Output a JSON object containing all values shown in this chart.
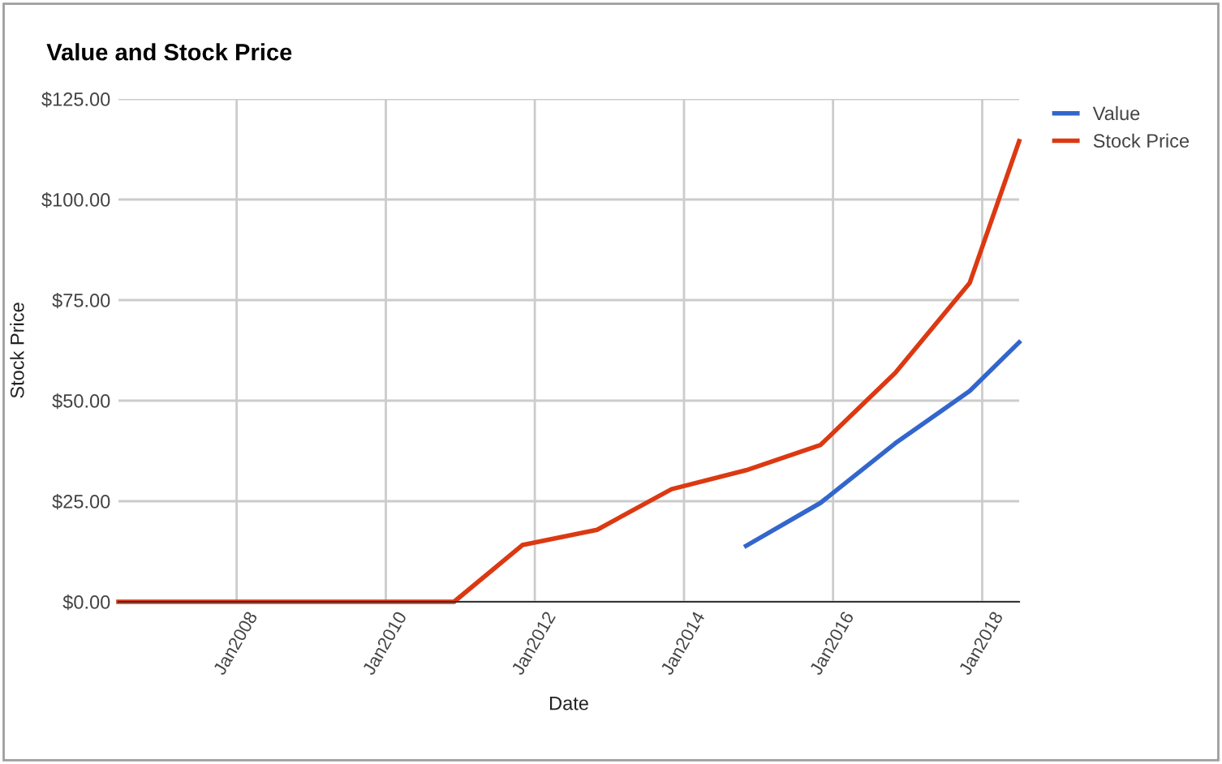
{
  "chart_data": {
    "type": "line",
    "title": "Value and Stock Price",
    "xlabel": "Date",
    "ylabel": "Stock Price",
    "xlim": [
      "2006-06",
      "2018-07"
    ],
    "xticks": [
      {
        "value": "2008-01",
        "label": "Jan2008"
      },
      {
        "value": "2010-01",
        "label": "Jan2010"
      },
      {
        "value": "2012-01",
        "label": "Jan2012"
      },
      {
        "value": "2014-01",
        "label": "Jan2014"
      },
      {
        "value": "2016-01",
        "label": "Jan2016"
      },
      {
        "value": "2018-01",
        "label": "Jan2018"
      }
    ],
    "ylim": [
      0,
      125
    ],
    "yticks": [
      {
        "value": 0,
        "label": "$0.00"
      },
      {
        "value": 25,
        "label": "$25.00"
      },
      {
        "value": 50,
        "label": "$50.00"
      },
      {
        "value": 75,
        "label": "$75.00"
      },
      {
        "value": 100,
        "label": "$100.00"
      },
      {
        "value": 125,
        "label": "$125.00"
      }
    ],
    "grid": true,
    "legend": "top right",
    "marker": "none",
    "line_style": "solid",
    "series": [
      {
        "name": "Value",
        "color": "#3366cc",
        "x": [
          "2014-11",
          "2015-11",
          "2016-11",
          "2017-11",
          "2018-07"
        ],
        "values": [
          13.9,
          24.6,
          39.4,
          52.4,
          64.5
        ]
      },
      {
        "name": "Stock Price",
        "color": "#dc3912",
        "x": [
          "2006-06",
          "2010-12",
          "2011-11",
          "2012-11",
          "2013-11",
          "2014-11",
          "2015-11",
          "2016-11",
          "2017-11",
          "2018-07"
        ],
        "values": [
          0,
          0,
          14.1,
          17.9,
          28.0,
          32.7,
          39.0,
          56.9,
          79.3,
          114.5
        ]
      }
    ]
  }
}
